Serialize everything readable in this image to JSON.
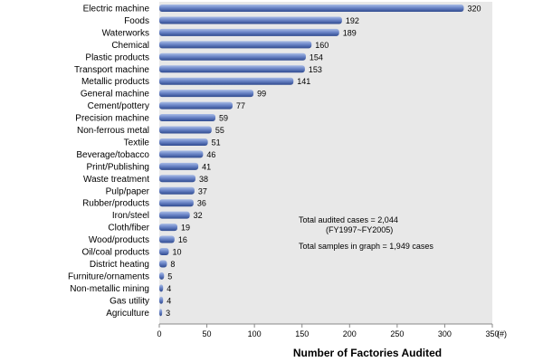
{
  "chart_data": {
    "type": "bar",
    "orientation": "horizontal",
    "categories": [
      "Electric machine",
      "Foods",
      "Waterworks",
      "Chemical",
      "Plastic products",
      "Transport machine",
      "Metallic products",
      "General machine",
      "Cement/pottery",
      "Precision machine",
      "Non-ferrous metal",
      "Textile",
      "Beverage/tobacco",
      "Print/Publishing",
      "Waste treatment",
      "Pulp/paper",
      "Rubber/products",
      "Iron/steel",
      "Cloth/fiber",
      "Wood/products",
      "Oil/coal products",
      "District heating",
      "Furniture/ornaments",
      "Non-metallic mining",
      "Gas utility",
      "Agriculture"
    ],
    "values": [
      320,
      192,
      189,
      160,
      154,
      153,
      141,
      99,
      77,
      59,
      55,
      51,
      46,
      41,
      38,
      37,
      36,
      32,
      19,
      16,
      10,
      8,
      5,
      4,
      4,
      3
    ],
    "xlabel": "Number of Factories Audited",
    "xlim": [
      0,
      350
    ],
    "xticks": [
      "0",
      "50",
      "100",
      "150",
      "200",
      "250",
      "300",
      "350"
    ],
    "x_unit_label": "(#)",
    "annotations": [
      "Total audited cases = 2,044",
      "(FY1997~FY2005)",
      "Total samples in graph = 1,949 cases"
    ],
    "grid": false,
    "colors": {
      "plot_background": "#e8e8e8",
      "bar_dark": "#2f4a8f",
      "bar_mid": "#6c86c8",
      "bar_light": "#a9bce6"
    }
  }
}
